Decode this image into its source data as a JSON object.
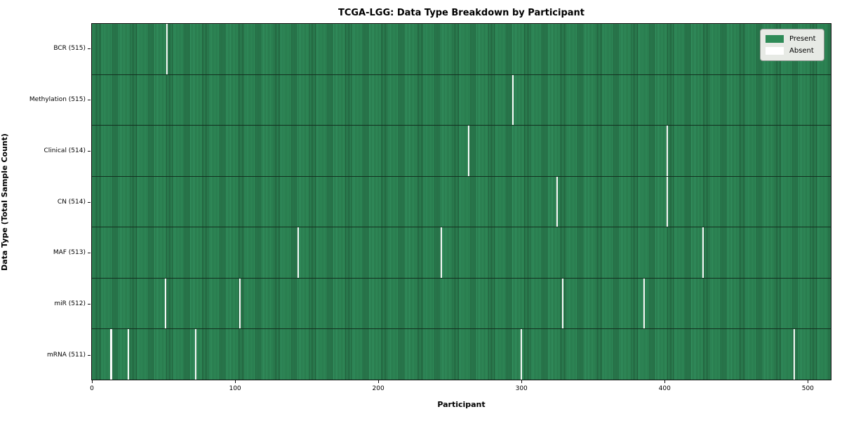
{
  "title": "TCGA-LGG: Data Type Breakdown by Participant",
  "chart_data": {
    "type": "heatmap",
    "title": "TCGA-LGG: Data Type Breakdown by Participant",
    "xlabel": "Participant",
    "ylabel": "Data Type (Total Sample Count)",
    "n_participants": 516,
    "xlim": [
      -0.5,
      516.5
    ],
    "x_ticks": [
      0,
      100,
      200,
      300,
      400,
      500
    ],
    "grid": false,
    "legend_position": "upper right",
    "legend": [
      {
        "label": "Present",
        "color": "#2e8b57"
      },
      {
        "label": "Absent",
        "color": "#ffffff"
      }
    ],
    "colors": {
      "present": "#2e8b57",
      "present_edge": "#1d5434",
      "absent": "#ffffff"
    },
    "rows": [
      {
        "label": "BCR (515)",
        "present_count": 515,
        "absent_participants": [
          52
        ]
      },
      {
        "label": "Methylation (515)",
        "present_count": 515,
        "absent_participants": [
          294
        ]
      },
      {
        "label": "Clinical (514)",
        "present_count": 514,
        "absent_participants": [
          263,
          402
        ]
      },
      {
        "label": "CN (514)",
        "present_count": 514,
        "absent_participants": [
          325,
          402
        ]
      },
      {
        "label": "MAF (513)",
        "present_count": 513,
        "absent_participants": [
          144,
          244,
          427
        ]
      },
      {
        "label": "miR (512)",
        "present_count": 512,
        "absent_participants": [
          51,
          103,
          329,
          386
        ]
      },
      {
        "label": "mRNA (511)",
        "present_count": 511,
        "absent_participants": [
          13,
          25,
          72,
          300,
          491
        ]
      }
    ]
  }
}
